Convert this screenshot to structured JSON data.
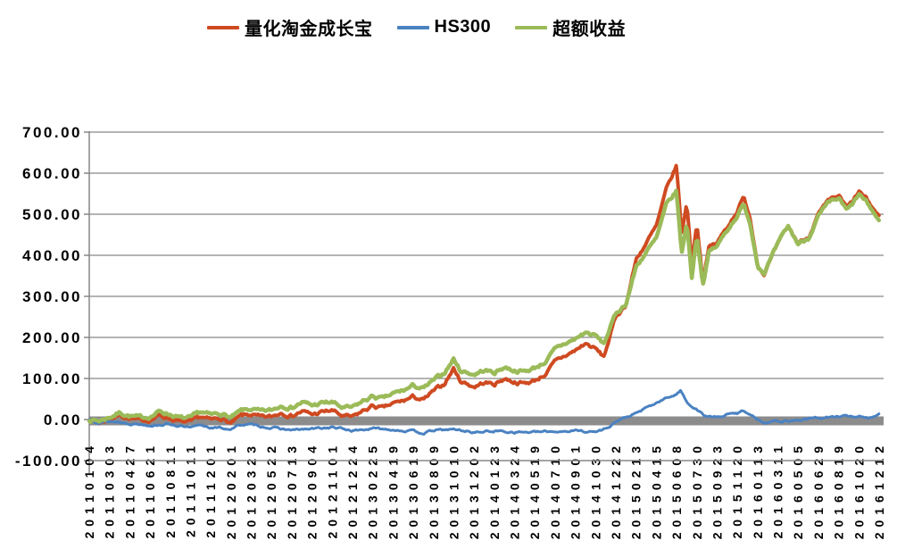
{
  "page": {
    "background": "#ffffff"
  },
  "legend": {
    "items": [
      {
        "label": "量化淘金成长宝",
        "color": "#cf4a21"
      },
      {
        "label": "HS300",
        "color": "#4a82c2"
      },
      {
        "label": "超额收益",
        "color": "#9bbb59"
      }
    ]
  },
  "chart_data": {
    "type": "line",
    "title": "",
    "legend_position": "top",
    "grid": "horizontal",
    "gridline_color": "#878787",
    "zero_line": {
      "value": 0,
      "style": "thick-band",
      "color": "#8c8c8c"
    },
    "y_axis": {
      "min": -100,
      "max": 700,
      "tick_step": 100,
      "tick_labels": [
        "700.00",
        "600.00",
        "500.00",
        "400.00",
        "300.00",
        "200.00",
        "100.00",
        "0.00",
        "-100.00"
      ]
    },
    "x_axis": {
      "rotation": -90,
      "labels": [
        "20110104",
        "20110303",
        "20110427",
        "20110621",
        "20110811",
        "20111011",
        "20111201",
        "20120201",
        "20120323",
        "20120522",
        "20120713",
        "20120904",
        "20121101",
        "20121224",
        "20130225",
        "20130419",
        "20130619",
        "20130809",
        "20131010",
        "20131202",
        "20140123",
        "20140324",
        "20140519",
        "20140710",
        "20140901",
        "20141030",
        "20141222",
        "20150213",
        "20150415",
        "20150608",
        "20150730",
        "20150923",
        "20151120",
        "20160113",
        "20160311",
        "20160505",
        "20160629",
        "20160819",
        "20161020",
        "20161212"
      ]
    },
    "series": [
      {
        "name": "量化淘金成长宝",
        "color": "#cf4a21",
        "stroke_width": 4,
        "x": [
          0,
          0.5,
          1,
          1.5,
          2,
          2.5,
          3,
          3.5,
          4,
          4.5,
          5,
          5.5,
          6,
          6.5,
          7,
          7.5,
          8,
          8.5,
          9,
          9.5,
          10,
          10.5,
          11,
          11.5,
          12,
          12.5,
          13,
          13.5,
          14,
          14.5,
          15,
          15.5,
          16,
          16.5,
          17,
          17.5,
          18,
          18.3,
          19,
          19.5,
          20,
          20.5,
          21,
          21.5,
          22,
          22.5,
          23,
          23.5,
          24,
          24.5,
          25,
          25.4,
          26,
          26.5,
          27,
          27.5,
          28,
          28.5,
          29,
          29.25,
          29.5,
          29.75,
          30,
          30.3,
          30.6,
          31,
          31.5,
          32,
          32.3,
          32.6,
          33,
          33.3,
          33.7,
          34,
          34.5,
          35,
          35.5,
          36,
          36.5,
          37,
          37.4,
          37.7,
          38,
          38.3,
          38.6,
          39
        ],
        "y": [
          0,
          -8,
          2,
          12,
          3,
          -3,
          0,
          10,
          3,
          -6,
          -8,
          6,
          -2,
          4,
          -10,
          8,
          12,
          4,
          6,
          18,
          10,
          20,
          12,
          18,
          22,
          8,
          5,
          20,
          33,
          27,
          38,
          45,
          55,
          47,
          68,
          85,
          125,
          95,
          80,
          90,
          86,
          100,
          92,
          88,
          95,
          110,
          140,
          155,
          168,
          185,
          172,
          152,
          250,
          280,
          390,
          430,
          470,
          560,
          618,
          450,
          530,
          380,
          480,
          340,
          420,
          430,
          470,
          510,
          540,
          500,
          380,
          355,
          395,
          425,
          470,
          430,
          445,
          500,
          530,
          545,
          515,
          530,
          555,
          540,
          520,
          495
        ]
      },
      {
        "name": "HS300",
        "color": "#4a82c2",
        "stroke_width": 3,
        "x": [
          0,
          0.5,
          1,
          2,
          3,
          4,
          5,
          5.5,
          6,
          7,
          7.5,
          8,
          9,
          10,
          11,
          12,
          13,
          14,
          15,
          16,
          16.5,
          17,
          18,
          19,
          20,
          21,
          22,
          23,
          24,
          25,
          25.5,
          26,
          26.5,
          27,
          28,
          28.5,
          29,
          29.2,
          29.5,
          29.75,
          30,
          30.4,
          31,
          31.5,
          32,
          32.3,
          32.7,
          33,
          33.4,
          34,
          35,
          36,
          37,
          38,
          38.5,
          39
        ],
        "y": [
          0,
          -6,
          -4,
          -9,
          -13,
          -11,
          -21,
          -14,
          -19,
          -23,
          -12,
          -13,
          -20,
          -26,
          -23,
          -19,
          -27,
          -22,
          -24,
          -29,
          -33,
          -27,
          -24,
          -31,
          -28,
          -30,
          -31,
          -29,
          -27,
          -30,
          -22,
          -5,
          5,
          15,
          40,
          52,
          62,
          70,
          45,
          32,
          25,
          8,
          5,
          12,
          15,
          22,
          12,
          0,
          -6,
          -4,
          -1,
          4,
          7,
          8,
          5,
          12
        ]
      },
      {
        "name": "超额收益",
        "color": "#9bbb59",
        "stroke_width": 4.5,
        "x": [
          0,
          0.5,
          1,
          1.5,
          2,
          2.5,
          3,
          3.5,
          4,
          4.5,
          5,
          5.5,
          6,
          6.5,
          7,
          7.5,
          8,
          8.5,
          9,
          9.5,
          10,
          10.5,
          11,
          11.5,
          12,
          12.5,
          13,
          13.5,
          14,
          14.5,
          15,
          15.5,
          16,
          16.5,
          17,
          17.5,
          18,
          18.3,
          19,
          19.5,
          20,
          20.5,
          21,
          21.5,
          22,
          22.5,
          23,
          23.5,
          24,
          24.5,
          25,
          25.4,
          26,
          26.5,
          27,
          27.5,
          28,
          28.5,
          29,
          29.25,
          29.5,
          29.75,
          30,
          30.3,
          30.6,
          31,
          31.5,
          32,
          32.3,
          32.6,
          33,
          33.3,
          33.7,
          34,
          34.5,
          35,
          35.5,
          36,
          36.5,
          37,
          37.4,
          37.7,
          38,
          38.3,
          38.6,
          39
        ],
        "y": [
          0,
          -3,
          6,
          17,
          9,
          4,
          8,
          20,
          13,
          3,
          2,
          18,
          10,
          16,
          4,
          20,
          25,
          18,
          22,
          35,
          30,
          42,
          34,
          40,
          42,
          28,
          28,
          44,
          56,
          50,
          62,
          70,
          82,
          75,
          94,
          112,
          148,
          120,
          110,
          120,
          114,
          128,
          120,
          117,
          126,
          140,
          170,
          185,
          196,
          212,
          204,
          184,
          258,
          282,
          372,
          408,
          440,
          522,
          556,
          402,
          482,
          348,
          452,
          330,
          408,
          422,
          462,
          498,
          522,
          486,
          378,
          358,
          396,
          426,
          470,
          428,
          442,
          495,
          525,
          538,
          508,
          524,
          548,
          532,
          513,
          483
        ]
      }
    ]
  }
}
